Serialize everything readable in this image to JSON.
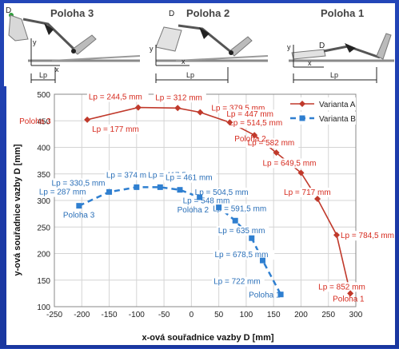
{
  "top": {
    "panels": [
      {
        "title": "Poloha 3",
        "point_label": "D",
        "lp_label": "Lp",
        "x_label": "x",
        "y_label": "y"
      },
      {
        "title": "Poloha 2",
        "point_label": "D",
        "lp_label": "Lp",
        "x_label": "x",
        "y_label": "y"
      },
      {
        "title": "Poloha 1",
        "point_label": "D",
        "lp_label": "Lp",
        "x_label": "x",
        "y_label": "y"
      }
    ]
  },
  "chart_data": {
    "type": "scatter",
    "xlabel": "x-ová souřadnice vazby D [mm]",
    "ylabel": "y-ová souřadnice vazby D [mm]",
    "xlim": [
      -250,
      300
    ],
    "ylim": [
      100,
      500
    ],
    "xticks": [
      -250,
      -200,
      -150,
      -100,
      -50,
      0,
      50,
      100,
      150,
      200,
      250,
      300
    ],
    "yticks": [
      100,
      150,
      200,
      250,
      300,
      350,
      400,
      450,
      500
    ],
    "grid": true,
    "legend_position": "top-right",
    "series": [
      {
        "name": "Varianta A",
        "color": "#c0392b",
        "marker": "diamond",
        "line": "solid",
        "points": [
          {
            "x": -190,
            "y": 452,
            "label": "Lp = 177 mm"
          },
          {
            "x": -97,
            "y": 475,
            "label": "Lp = 244,5 mm"
          },
          {
            "x": -25,
            "y": 474,
            "label": "Lp = 312 mm"
          },
          {
            "x": 16,
            "y": 466,
            "label": "Lp = 379,5 mm"
          },
          {
            "x": 70,
            "y": 447,
            "label": "Lp = 447 mm"
          },
          {
            "x": 115,
            "y": 423,
            "label": "Lp = 514,5 mm"
          },
          {
            "x": 155,
            "y": 390,
            "label": "Lp = 582 mm"
          },
          {
            "x": 200,
            "y": 352,
            "label": "Lp = 649,5 mm"
          },
          {
            "x": 230,
            "y": 303,
            "label": "Lp = 717 mm"
          },
          {
            "x": 265,
            "y": 235,
            "label": "Lp = 784,5 mm"
          },
          {
            "x": 290,
            "y": 125,
            "label": "Lp = 852 mm"
          }
        ]
      },
      {
        "name": "Varianta B",
        "color": "#2f7fd0",
        "marker": "square",
        "line": "dashed",
        "points": [
          {
            "x": -205,
            "y": 290,
            "label": "Lp = 287 mm"
          },
          {
            "x": -150,
            "y": 316,
            "label": "Lp = 330,5 mm"
          },
          {
            "x": -100,
            "y": 325,
            "label": "Lp = 374 mm"
          },
          {
            "x": -57,
            "y": 325,
            "label": "Lp = 417,5 mm"
          },
          {
            "x": -21,
            "y": 320,
            "label": "Lp = 461 mm"
          },
          {
            "x": 15,
            "y": 306,
            "label": "Lp = 504,5 mm"
          },
          {
            "x": 50,
            "y": 287,
            "label": "Lp = 548 mm"
          },
          {
            "x": 80,
            "y": 262,
            "label": "Lp = 591,5 mm"
          },
          {
            "x": 110,
            "y": 229,
            "label": "Lp = 635 mm"
          },
          {
            "x": 130,
            "y": 187,
            "label": "Lp = 678,5 mm"
          },
          {
            "x": 163,
            "y": 123,
            "label": "Lp = 722 mm"
          }
        ]
      }
    ],
    "annotations": [
      {
        "text": "Poloha 3",
        "series": 0,
        "point": 0
      },
      {
        "text": "Poloha 2",
        "series": 0,
        "point": 5
      },
      {
        "text": "Poloha 1",
        "series": 0,
        "point": 10
      },
      {
        "text": "Poloha 3",
        "series": 1,
        "point": 0
      },
      {
        "text": "Poloha 2",
        "series": 1,
        "point": 5
      },
      {
        "text": "Poloha 1",
        "series": 1,
        "point": 10
      }
    ]
  }
}
